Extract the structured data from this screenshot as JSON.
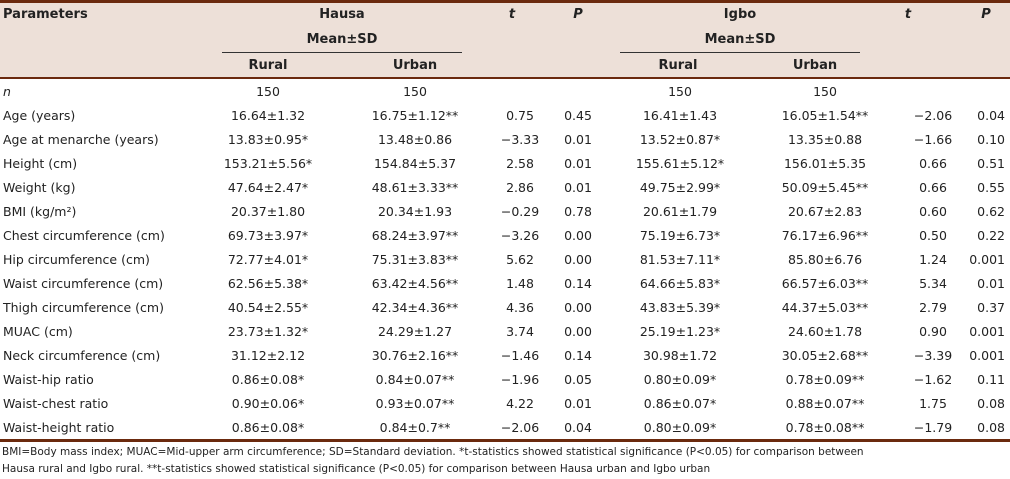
{
  "header": {
    "parameters": "Parameters",
    "hausa": "Hausa",
    "igbo": "Igbo",
    "mean_sd": "Mean±SD",
    "t": "t",
    "p": "P",
    "rural": "Rural",
    "urban": "Urban"
  },
  "rows": [
    [
      "n",
      "150",
      "150",
      "",
      "",
      "150",
      "150",
      "",
      ""
    ],
    [
      "Age (years)",
      "16.64±1.32",
      "16.75±1.12**",
      "0.75",
      "0.45",
      "16.41±1.43",
      "16.05±1.54**",
      "−2.06",
      "0.04"
    ],
    [
      "Age at menarche (years)",
      "13.83±0.95*",
      "13.48±0.86",
      "−3.33",
      "0.01",
      "13.52±0.87*",
      "13.35±0.88",
      "−1.66",
      "0.10"
    ],
    [
      "Height (cm)",
      "153.21±5.56*",
      "154.84±5.37",
      "2.58",
      "0.01",
      "155.61±5.12*",
      "156.01±5.35",
      "0.66",
      "0.51"
    ],
    [
      "Weight (kg)",
      "47.64±2.47*",
      "48.61±3.33**",
      "2.86",
      "0.01",
      "49.75±2.99*",
      "50.09±5.45**",
      "0.66",
      "0.55"
    ],
    [
      "BMI (kg/m²)",
      "20.37±1.80",
      "20.34±1.93",
      "−0.29",
      "0.78",
      "20.61±1.79",
      "20.67±2.83",
      "0.60",
      "0.62"
    ],
    [
      "Chest circumference (cm)",
      "69.73±3.97*",
      "68.24±3.97**",
      "−3.26",
      "0.00",
      "75.19±6.73*",
      "76.17±6.96**",
      "0.50",
      "0.22"
    ],
    [
      "Hip circumference (cm)",
      "72.77±4.01*",
      "75.31±3.83**",
      "5.62",
      "0.00",
      "81.53±7.11*",
      "85.80±6.76",
      "1.24",
      "0.001"
    ],
    [
      "Waist circumference (cm)",
      "62.56±5.38*",
      "63.42±4.56**",
      "1.48",
      "0.14",
      "64.66±5.83*",
      "66.57±6.03**",
      "5.34",
      "0.01"
    ],
    [
      "Thigh circumference (cm)",
      "40.54±2.55*",
      "42.34±4.36**",
      "4.36",
      "0.00",
      "43.83±5.39*",
      "44.37±5.03**",
      "2.79",
      "0.37"
    ],
    [
      "MUAC (cm)",
      "23.73±1.32*",
      "24.29±1.27",
      "3.74",
      "0.00",
      "25.19±1.23*",
      "24.60±1.78",
      "0.90",
      "0.001"
    ],
    [
      "Neck circumference (cm)",
      "31.12±2.12",
      "30.76±2.16**",
      "−1.46",
      "0.14",
      "30.98±1.72",
      "30.05±2.68**",
      "−3.39",
      "0.001"
    ],
    [
      "Waist-hip ratio",
      "0.86±0.08*",
      "0.84±0.07**",
      "−1.96",
      "0.05",
      "0.80±0.09*",
      "0.78±0.09**",
      "−1.62",
      "0.11"
    ],
    [
      "Waist-chest ratio",
      "0.90±0.06*",
      "0.93±0.07**",
      "4.22",
      "0.01",
      "0.86±0.07*",
      "0.88±0.07**",
      "1.75",
      "0.08"
    ],
    [
      "Waist-height ratio",
      "0.86±0.08*",
      "0.84±0.7**",
      "−2.06",
      "0.04",
      "0.80±0.09*",
      "0.78±0.08**",
      "−1.79",
      "0.08"
    ]
  ],
  "footnote": {
    "line1": "BMI=Body mass index; MUAC=Mid-upper arm circumference; SD=Standard deviation. *t-statistics showed statistical significance (P<0.05) for comparison between",
    "line2": "Hausa rural and Igbo rural. **t-statistics showed statistical significance (P<0.05) for comparison between Hausa urban and Igbo urban"
  }
}
